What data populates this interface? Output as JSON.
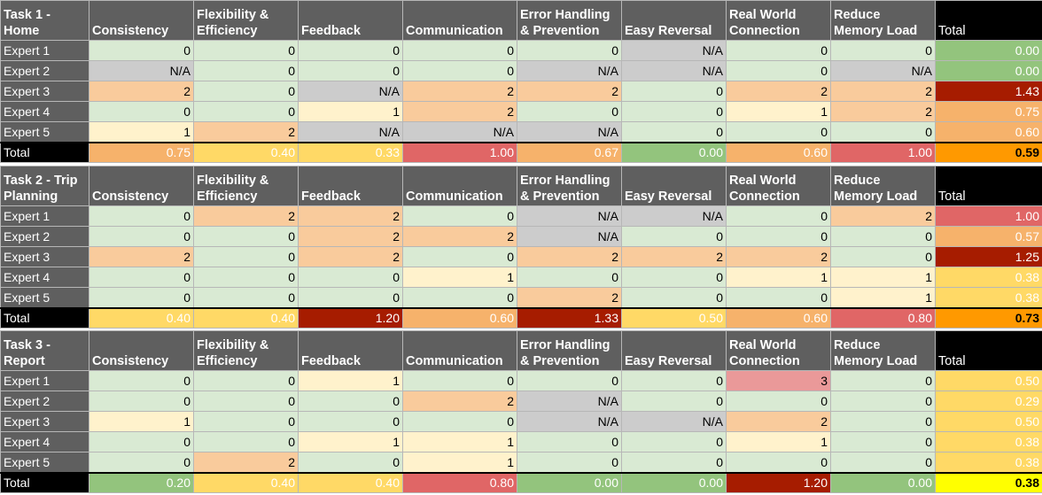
{
  "total_label": "Total",
  "tasks": [
    {
      "title": "Task 1 - Home",
      "headers": [
        "Consistency",
        "Flexibility & Efficiency",
        "Feedback",
        "Communication",
        "Error Handling & Prevention",
        "Easy Reversal",
        "Real World Connection",
        "Reduce Memory Load",
        "Total"
      ],
      "rows": [
        {
          "label": "Expert 1",
          "values": [
            "0",
            "0",
            "0",
            "0",
            "0",
            "N/A",
            "0",
            "0"
          ],
          "total": "0.00"
        },
        {
          "label": "Expert 2",
          "values": [
            "N/A",
            "0",
            "0",
            "0",
            "N/A",
            "N/A",
            "0",
            "N/A"
          ],
          "total": "0.00"
        },
        {
          "label": "Expert 3",
          "values": [
            "2",
            "0",
            "N/A",
            "2",
            "2",
            "0",
            "2",
            "2"
          ],
          "total": "1.43"
        },
        {
          "label": "Expert 4",
          "values": [
            "0",
            "0",
            "1",
            "2",
            "0",
            "0",
            "1",
            "2"
          ],
          "total": "0.75"
        },
        {
          "label": "Expert 5",
          "values": [
            "1",
            "2",
            "N/A",
            "N/A",
            "N/A",
            "0",
            "0",
            "0"
          ],
          "total": "0.60"
        }
      ],
      "totals": {
        "label": "Total",
        "values": [
          "0.75",
          "0.40",
          "0.33",
          "1.00",
          "0.67",
          "0.00",
          "0.60",
          "1.00"
        ],
        "grand": "0.59"
      }
    },
    {
      "title": "Task 2 - Trip Planning",
      "headers": [
        "Consistency",
        "Flexibility & Efficiency",
        "Feedback",
        "Communication",
        "Error Handling & Prevention",
        "Easy Reversal",
        "Real World Connection",
        "Reduce Memory Load",
        "Total"
      ],
      "rows": [
        {
          "label": "Expert 1",
          "values": [
            "0",
            "2",
            "2",
            "0",
            "N/A",
            "N/A",
            "0",
            "2"
          ],
          "total": "1.00"
        },
        {
          "label": "Expert 2",
          "values": [
            "0",
            "0",
            "2",
            "2",
            "N/A",
            "0",
            "0",
            "0"
          ],
          "total": "0.57"
        },
        {
          "label": "Expert 3",
          "values": [
            "2",
            "0",
            "2",
            "0",
            "2",
            "2",
            "2",
            "0"
          ],
          "total": "1.25"
        },
        {
          "label": "Expert 4",
          "values": [
            "0",
            "0",
            "0",
            "1",
            "0",
            "0",
            "1",
            "1"
          ],
          "total": "0.38"
        },
        {
          "label": "Expert 5",
          "values": [
            "0",
            "0",
            "0",
            "0",
            "2",
            "0",
            "0",
            "1"
          ],
          "total": "0.38"
        }
      ],
      "totals": {
        "label": "Total",
        "values": [
          "0.40",
          "0.40",
          "1.20",
          "0.60",
          "1.33",
          "0.50",
          "0.60",
          "0.80"
        ],
        "grand": "0.73"
      }
    },
    {
      "title": "Task 3 - Report",
      "headers": [
        "Consistency",
        "Flexibility & Efficiency",
        "Feedback",
        "Communication",
        "Error Handling & Prevention",
        "Easy Reversal",
        "Real World Connection",
        "Reduce Memory Load",
        "Total"
      ],
      "rows": [
        {
          "label": "Expert 1",
          "values": [
            "0",
            "0",
            "1",
            "0",
            "0",
            "0",
            "3",
            "0"
          ],
          "total": "0.50"
        },
        {
          "label": "Expert 2",
          "values": [
            "0",
            "0",
            "0",
            "2",
            "N/A",
            "0",
            "0",
            "0"
          ],
          "total": "0.29"
        },
        {
          "label": "Expert 3",
          "values": [
            "1",
            "0",
            "0",
            "0",
            "N/A",
            "N/A",
            "2",
            "0"
          ],
          "total": "0.50"
        },
        {
          "label": "Expert 4",
          "values": [
            "0",
            "0",
            "1",
            "1",
            "0",
            "0",
            "1",
            "0"
          ],
          "total": "0.38"
        },
        {
          "label": "Expert 5",
          "values": [
            "0",
            "2",
            "0",
            "1",
            "0",
            "0",
            "0",
            "0"
          ],
          "total": "0.38"
        }
      ],
      "totals": {
        "label": "Total",
        "values": [
          "0.20",
          "0.40",
          "0.40",
          "0.80",
          "0.00",
          "0.00",
          "1.20",
          "0.00"
        ],
        "grand": "0.38"
      }
    }
  ],
  "colors": {
    "score_0": "#d9ead3",
    "score_1": "#fff2cc",
    "score_2": "#f9cb9c",
    "score_3": "#ea9999",
    "na": "#cccccc",
    "rowtot_0.00": "#93c47d",
    "rowtot_0.29": "#ffd966",
    "rowtot_0.38": "#ffd966",
    "rowtot_0.50": "#ffd966",
    "rowtot_0.57": "#f6b26b",
    "rowtot_0.60": "#f6b26b",
    "rowtot_0.75": "#f6b26b",
    "rowtot_1.00": "#e06666",
    "rowtot_1.25": "#a61c00",
    "rowtot_1.43": "#a61c00",
    "coltot_0.00": "#93c47d",
    "coltot_0.20": "#93c47d",
    "coltot_0.33": "#ffd966",
    "coltot_0.40": "#ffd966",
    "coltot_0.50": "#ffd966",
    "coltot_0.60": "#f6b26b",
    "coltot_0.67": "#f6b26b",
    "coltot_0.75": "#f6b26b",
    "coltot_0.80": "#e06666",
    "coltot_1.00": "#e06666",
    "coltot_1.20": "#a61c00",
    "coltot_1.33": "#a61c00",
    "grand_0.38": "#ffff00",
    "grand_0.59": "#ff9900",
    "grand_0.73": "#ff9900"
  }
}
